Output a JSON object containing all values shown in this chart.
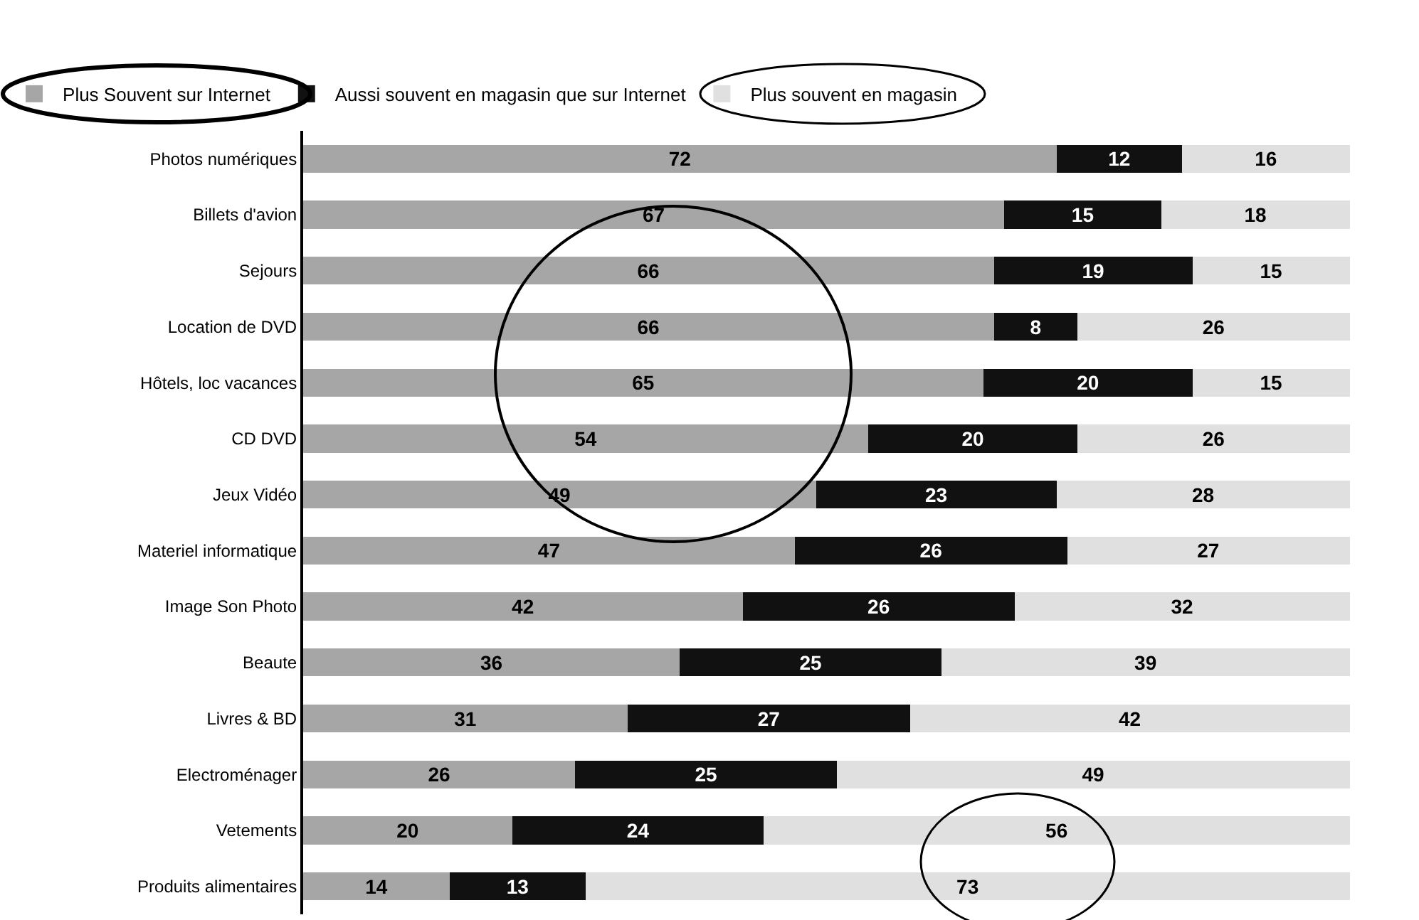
{
  "chart_data": {
    "type": "bar",
    "orientation": "horizontal",
    "stacked": true,
    "data_labels": true,
    "legend": "top",
    "categories": [
      "Photos numériques",
      "Billets d'avion",
      "Sejours",
      "Location de DVD",
      "Hôtels, loc vacances",
      "CD DVD",
      "Jeux Vidéo",
      "Materiel informatique",
      "Image Son Photo",
      "Beaute",
      "Livres & BD",
      "Electroménager",
      "Vetements",
      "Produits alimentaires"
    ],
    "series": [
      {
        "name": "Plus Souvent sur Internet",
        "color": "#a6a6a6",
        "values": [
          72,
          67,
          66,
          66,
          65,
          54,
          49,
          47,
          42,
          36,
          31,
          26,
          20,
          14
        ]
      },
      {
        "name": "Aussi souvent en magasin que sur Internet",
        "color": "#111111",
        "values": [
          12,
          15,
          19,
          8,
          20,
          20,
          23,
          26,
          26,
          25,
          27,
          25,
          24,
          13
        ]
      },
      {
        "name": "Plus souvent en magasin",
        "color": "#e0e0e0",
        "values": [
          16,
          18,
          15,
          26,
          15,
          26,
          28,
          27,
          32,
          39,
          42,
          49,
          56,
          73
        ]
      }
    ]
  }
}
